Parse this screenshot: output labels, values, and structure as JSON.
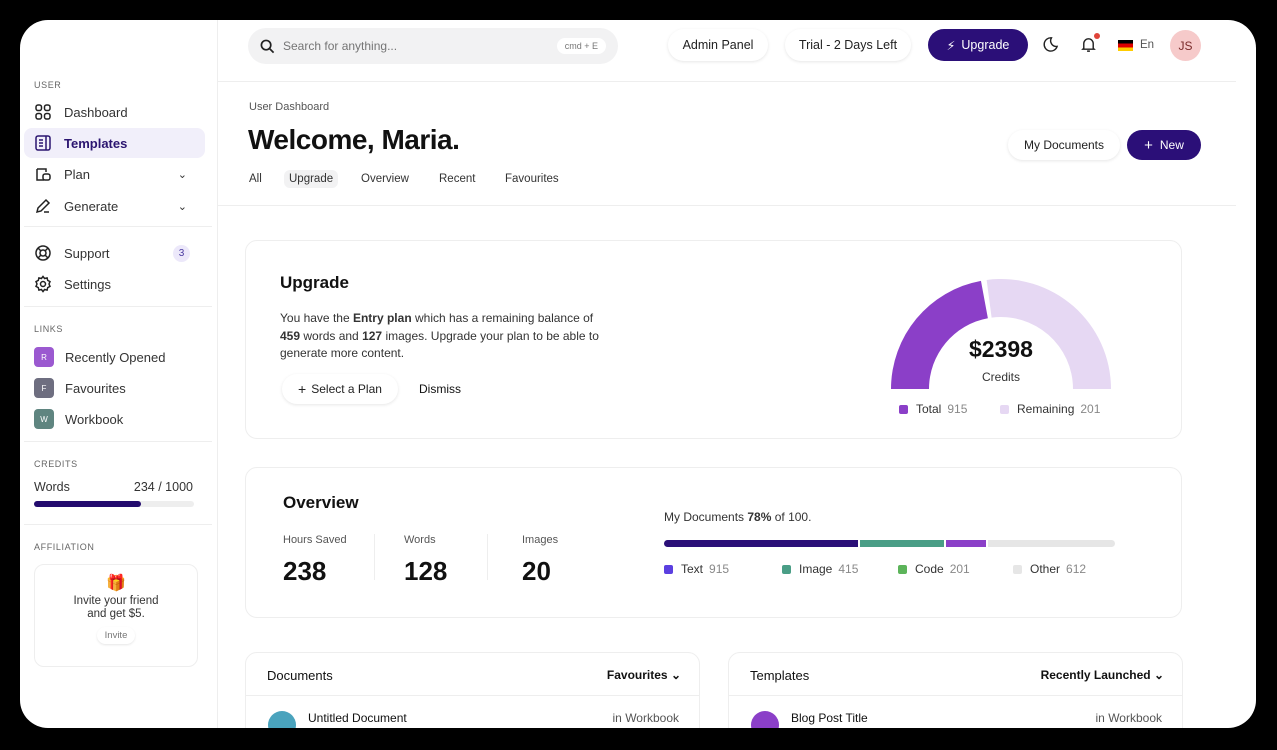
{
  "header": {
    "search_placeholder": "Search for anything...",
    "shortcut": "cmd + E",
    "admin_panel": "Admin Panel",
    "trial": "Trial - 2 Days Left",
    "upgrade": "Upgrade",
    "language": "En",
    "avatar_initials": "JS",
    "notification_dot": true
  },
  "sidebar": {
    "user_label": "USER",
    "items": [
      {
        "label": "Dashboard",
        "icon": "grid-icon"
      },
      {
        "label": "Templates",
        "icon": "document-icon",
        "active": true
      },
      {
        "label": "Plan",
        "icon": "wallet-icon",
        "chevron": true
      },
      {
        "label": "Generate",
        "icon": "pen-icon",
        "chevron": true
      }
    ],
    "support": {
      "label": "Support",
      "badge": "3"
    },
    "settings": {
      "label": "Settings"
    },
    "links_label": "LINKS",
    "links": [
      {
        "letter": "R",
        "label": "Recently Opened",
        "color": "#9b59d0"
      },
      {
        "letter": "F",
        "label": "Favourites",
        "color": "#6e6e80"
      },
      {
        "letter": "W",
        "label": "Workbook",
        "color": "#5f8580"
      }
    ],
    "credits_label": "CREDITS",
    "credits": {
      "label": "Words",
      "value": "234 / 1000",
      "fill_fraction": 0.67
    },
    "affiliation_label": "AFFILIATION",
    "affiliation": {
      "text1": "Invite your friend",
      "text2": "and get $5.",
      "button": "Invite"
    }
  },
  "page": {
    "breadcrumb": "User Dashboard",
    "title": "Welcome, Maria.",
    "my_documents": "My Documents",
    "new": "New",
    "tabs": [
      {
        "label": "All"
      },
      {
        "label": "Upgrade",
        "active": true
      },
      {
        "label": "Overview"
      },
      {
        "label": "Recent"
      },
      {
        "label": "Favourites"
      }
    ]
  },
  "upgrade": {
    "title": "Upgrade",
    "t1": "You have the ",
    "plan": "Entry plan",
    "t2": " which has a remaining balance of",
    "words": "459",
    "t3": " words and ",
    "images": "127",
    "t4": " images. Upgrade your plan to be able to",
    "t5": "generate more content.",
    "select": "Select a Plan",
    "dismiss": "Dismiss",
    "gauge": {
      "value": "$2398",
      "label": "Credits",
      "total_label": "Total",
      "total": "915",
      "remaining_label": "Remaining",
      "remaining": "201",
      "total_color": "#8b3fc8",
      "remaining_color": "#e6d8f3",
      "total_fraction": 0.45
    }
  },
  "overview": {
    "title": "Overview",
    "stats": [
      {
        "label": "Hours Saved",
        "value": "238"
      },
      {
        "label": "Words",
        "value": "128"
      },
      {
        "label": "Images",
        "value": "20"
      }
    ],
    "docs_text": "My Documents ",
    "docs_pct": "78%",
    "docs_rest": " of 100.",
    "segments": [
      {
        "label": "Text",
        "value": "915",
        "color": "#2b0f78",
        "legend_color": "#5b3fe0",
        "fraction": 0.435
      },
      {
        "label": "Image",
        "value": "415",
        "color": "#4a9e86",
        "legend_color": "#4a9e86",
        "fraction": 0.19
      },
      {
        "label": "Code",
        "value": "201",
        "color": "#8b3fc8",
        "legend_color": "#5cb45a",
        "fraction": 0.09
      },
      {
        "label": "Other",
        "value": "612",
        "color": "#e6e6e6",
        "legend_color": "#e6e6e6",
        "fraction": 0.285
      }
    ]
  },
  "documents": {
    "title": "Documents",
    "filter": "Favourites",
    "rows": [
      {
        "name": "Untitled Document",
        "location": "in Workbook",
        "color": "#4aa3bd"
      }
    ]
  },
  "templates": {
    "title": "Templates",
    "filter": "Recently Launched",
    "rows": [
      {
        "name": "Blog Post Title",
        "location": "in Workbook",
        "color": "#8b3fc8"
      }
    ]
  }
}
